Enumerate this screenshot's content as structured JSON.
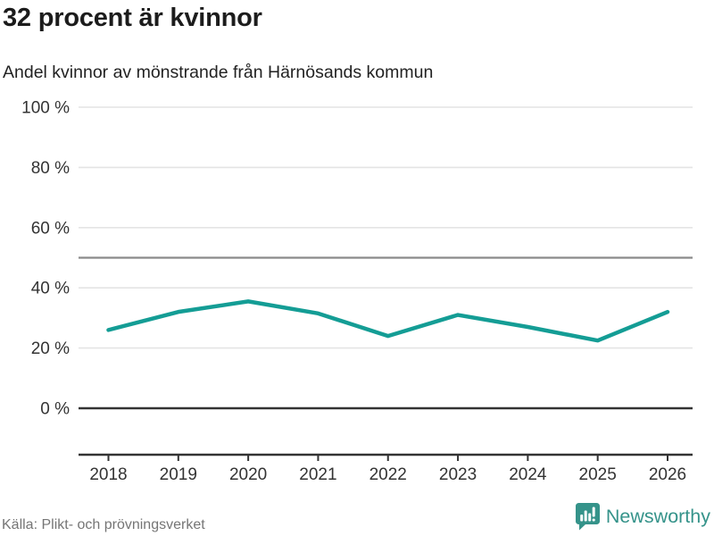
{
  "header": {
    "title": "32 procent är kvinnor",
    "subtitle": "Andel kvinnor av mönstrande från Härnösands kommun"
  },
  "footer": {
    "source": "Källa: Plikt- och prövningsverket",
    "brand": "Newsworthy",
    "brand_icon": "newsworthy-chart-bubble-icon"
  },
  "colors": {
    "line": "#149d95",
    "grid": "#e4e4e4",
    "refline": "#8a8a8a",
    "axis": "#333333",
    "tick_label": "#333333",
    "title_text": "#1c1c1c",
    "muted_text": "#757575",
    "brand": "#35938a"
  },
  "chart_data": {
    "type": "line",
    "title": "32 procent är kvinnor",
    "subtitle": "Andel kvinnor av mönstrande från Härnösands kommun",
    "x": [
      2018,
      2019,
      2020,
      2021,
      2022,
      2023,
      2024,
      2025,
      2026
    ],
    "values": [
      26,
      32,
      35.5,
      31.5,
      24,
      31,
      27,
      22.5,
      32
    ],
    "xlabel": "",
    "ylabel": "",
    "ylim": [
      0,
      100
    ],
    "yticks": [
      0,
      20,
      40,
      60,
      80,
      100
    ],
    "ytick_suffix": " %",
    "reference_line_y": 50,
    "grid": true,
    "legend": "none",
    "markers": "none"
  }
}
